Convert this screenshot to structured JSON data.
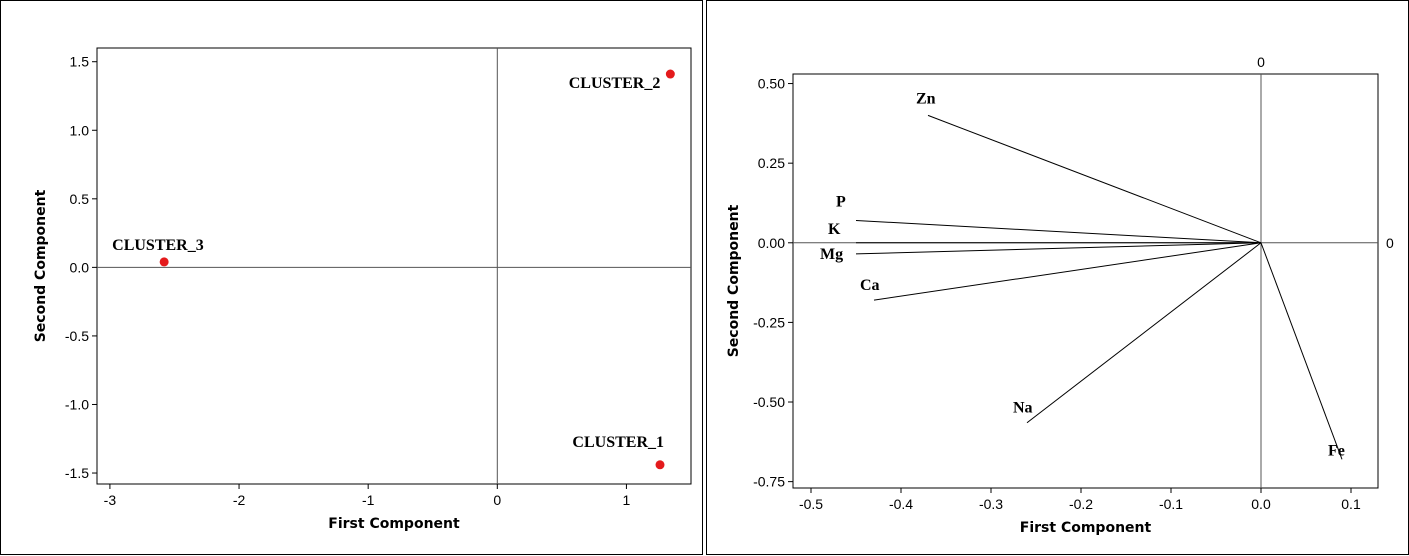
{
  "colors": {
    "point": "#e41a1c",
    "line": "#000000"
  },
  "chart_data": [
    {
      "type": "scatter",
      "title": "",
      "xlabel": "First Component",
      "ylabel": "Second Component",
      "xlim": [
        -3.1,
        1.5
      ],
      "ylim": [
        -1.58,
        1.6
      ],
      "xticks": [
        -3,
        -2,
        -1,
        0,
        1
      ],
      "yticks": [
        -1.5,
        -1.0,
        -0.5,
        0.0,
        0.5,
        1.0,
        1.5
      ],
      "xtick_labels": [
        "-3",
        "-2",
        "-1",
        "0",
        "1"
      ],
      "ytick_labels": [
        "-1.5",
        "-1.0",
        "-0.5",
        "0.0",
        "0.5",
        "1.0",
        "1.5"
      ],
      "reference_lines": {
        "x": 0,
        "y": 0
      },
      "points": [
        {
          "label": "CLUSTER_2",
          "x": 1.34,
          "y": 1.41
        },
        {
          "label": "CLUSTER_3",
          "x": -2.58,
          "y": 0.04
        },
        {
          "label": "CLUSTER_1",
          "x": 1.26,
          "y": -1.44
        }
      ]
    },
    {
      "type": "line",
      "subtype": "loading-plot",
      "title": "",
      "xlabel": "First Component",
      "ylabel": "Second Component",
      "xlim": [
        -0.52,
        0.13
      ],
      "ylim": [
        -0.77,
        0.53
      ],
      "xticks": [
        -0.5,
        -0.4,
        -0.3,
        -0.2,
        -0.1,
        0.0,
        0.1
      ],
      "yticks": [
        -0.75,
        -0.5,
        -0.25,
        0.0,
        0.25,
        0.5
      ],
      "xtick_labels": [
        "-0.5",
        "-0.4",
        "-0.3",
        "-0.2",
        "-0.1",
        "0.0",
        "0.1"
      ],
      "ytick_labels": [
        "-0.75",
        "-0.50",
        "-0.25",
        "0.00",
        "0.25",
        "0.50"
      ],
      "reference_lines": {
        "x": 0,
        "y": 0,
        "x_label": "0",
        "y_label": "0"
      },
      "vectors": [
        {
          "label": "Zn",
          "x": -0.37,
          "y": 0.4
        },
        {
          "label": "P",
          "x": -0.45,
          "y": 0.07
        },
        {
          "label": "K",
          "x": -0.45,
          "y": 0.0
        },
        {
          "label": "Mg",
          "x": -0.45,
          "y": -0.035
        },
        {
          "label": "Ca",
          "x": -0.43,
          "y": -0.18
        },
        {
          "label": "Na",
          "x": -0.26,
          "y": -0.565
        },
        {
          "label": "Fe",
          "x": 0.09,
          "y": -0.68
        }
      ]
    }
  ]
}
